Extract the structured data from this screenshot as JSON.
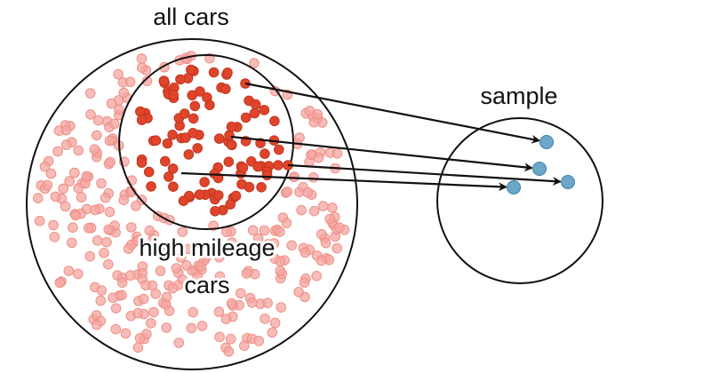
{
  "labels": {
    "population": "all cars",
    "subgroup_line1": "high mileage",
    "subgroup_line2": "cars",
    "sample": "sample"
  },
  "colors": {
    "background_dot": "#f4a6a0",
    "subgroup_dot": "#e0452b",
    "sample_dot": "#6ca6c8",
    "outline": "#111111",
    "arrow": "#111111"
  },
  "diagram": {
    "population_dot_count": 290,
    "subgroup_dot_count": 95,
    "sample_dot_count": 4,
    "arrow_count": 4
  }
}
